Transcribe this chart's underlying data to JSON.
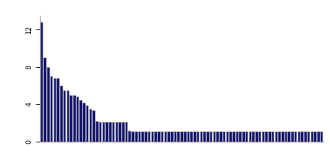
{
  "values": [
    12.8,
    9.0,
    8.0,
    7.0,
    6.8,
    6.8,
    6.0,
    5.5,
    5.5,
    5.0,
    5.0,
    4.8,
    4.5,
    4.2,
    3.9,
    3.5,
    3.4,
    2.2,
    2.1,
    2.1,
    2.1,
    2.1,
    2.1,
    2.1,
    2.1,
    2.1,
    2.1,
    1.2,
    1.1,
    1.1,
    1.1,
    1.1,
    1.1,
    1.1,
    1.1,
    1.1,
    1.1,
    1.1,
    1.1,
    1.1,
    1.1,
    1.1,
    1.1,
    1.1,
    1.1,
    1.1,
    1.1,
    1.1,
    1.1,
    1.1,
    1.1,
    1.1,
    1.1,
    1.1,
    1.1,
    1.1,
    1.1,
    1.1,
    1.1,
    1.1,
    1.1,
    1.1,
    1.1,
    1.1,
    1.1,
    1.1,
    1.1,
    1.1,
    1.1,
    1.1,
    1.1,
    1.1,
    1.1,
    1.1,
    1.1,
    1.1,
    1.1,
    1.1,
    1.1,
    1.1,
    1.1,
    1.1,
    1.1,
    1.1,
    1.1,
    1.1,
    1.1
  ],
  "bar_color": "#0d0d6b",
  "edge_color": "#aaaaaa",
  "background_color": "#ffffff",
  "ylim": [
    0,
    13.5
  ],
  "yticks": [
    0,
    4,
    8,
    12
  ],
  "bar_width": 0.75
}
